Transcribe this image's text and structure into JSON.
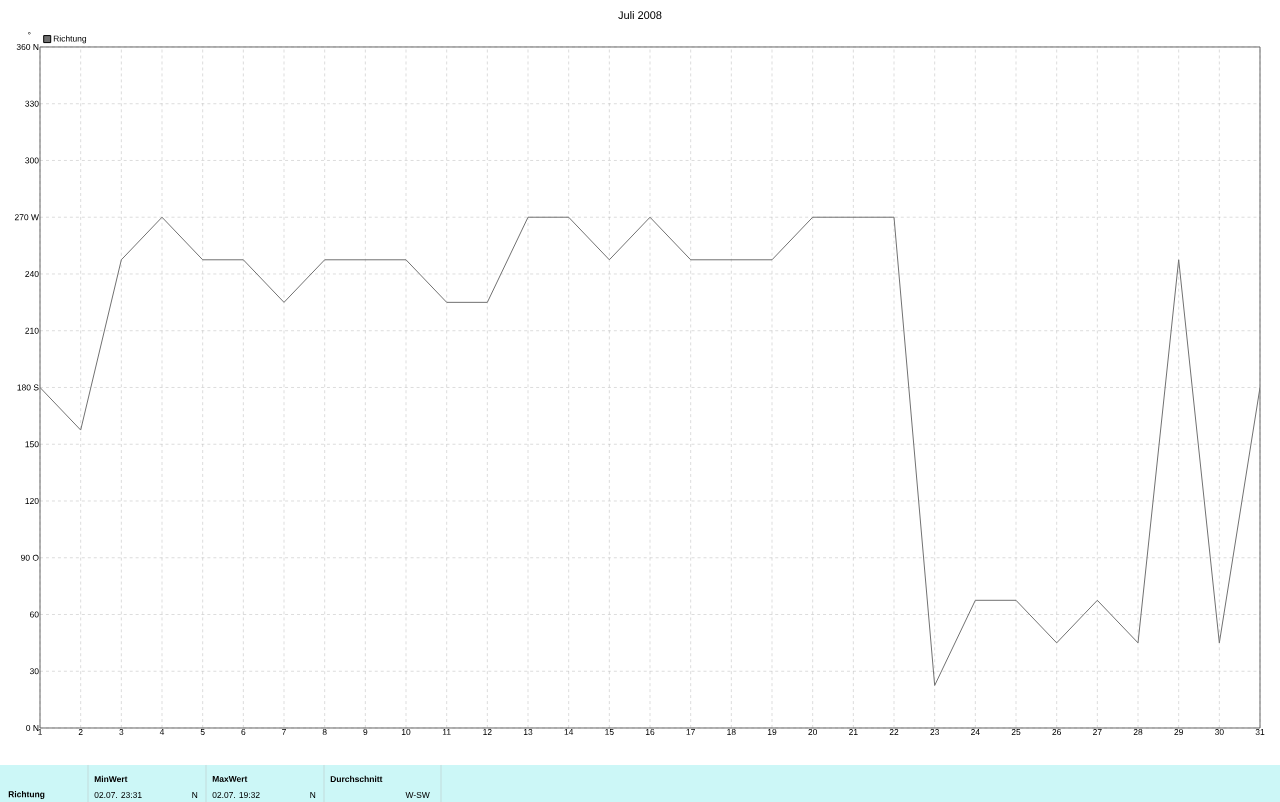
{
  "chart_data": {
    "type": "line",
    "title": "Juli 2008",
    "ylabel": "°",
    "x": [
      1,
      2,
      3,
      4,
      5,
      6,
      7,
      8,
      9,
      10,
      11,
      12,
      13,
      14,
      15,
      16,
      17,
      18,
      19,
      20,
      21,
      22,
      23,
      24,
      25,
      26,
      27,
      28,
      29,
      30,
      31
    ],
    "series": [
      {
        "name": "Richtung",
        "color": "#707070",
        "values": [
          180,
          157.5,
          247.5,
          270,
          247.5,
          247.5,
          225,
          247.5,
          247.5,
          247.5,
          225,
          225,
          270,
          270,
          247.5,
          270,
          247.5,
          247.5,
          247.5,
          270,
          270,
          270,
          22.5,
          67.5,
          67.5,
          45,
          67.5,
          45,
          247.5,
          45,
          180
        ]
      }
    ],
    "xlim": [
      1,
      31
    ],
    "xticks": [
      1,
      2,
      3,
      4,
      5,
      6,
      7,
      8,
      9,
      10,
      11,
      12,
      13,
      14,
      15,
      16,
      17,
      18,
      19,
      20,
      21,
      22,
      23,
      24,
      25,
      26,
      27,
      28,
      29,
      30,
      31
    ],
    "ylim": [
      0,
      360
    ],
    "yticks": [
      {
        "value": 0,
        "label": "0 N"
      },
      30,
      60,
      {
        "value": 90,
        "label": "90 O"
      },
      120,
      150,
      {
        "value": 180,
        "label": "180 S"
      },
      210,
      240,
      {
        "value": 270,
        "label": "270 W"
      },
      300,
      330,
      {
        "value": 360,
        "label": "360 N"
      }
    ],
    "grid": true,
    "legend": "top left",
    "marker": "none",
    "line_style": "solid",
    "annotations": [
      "Richtung",
      "MinWert",
      "02.07.  23:31",
      "N",
      "MaxWert",
      "02.07.  19:32",
      "N",
      "Durchschnitt",
      "W-SW"
    ]
  }
}
